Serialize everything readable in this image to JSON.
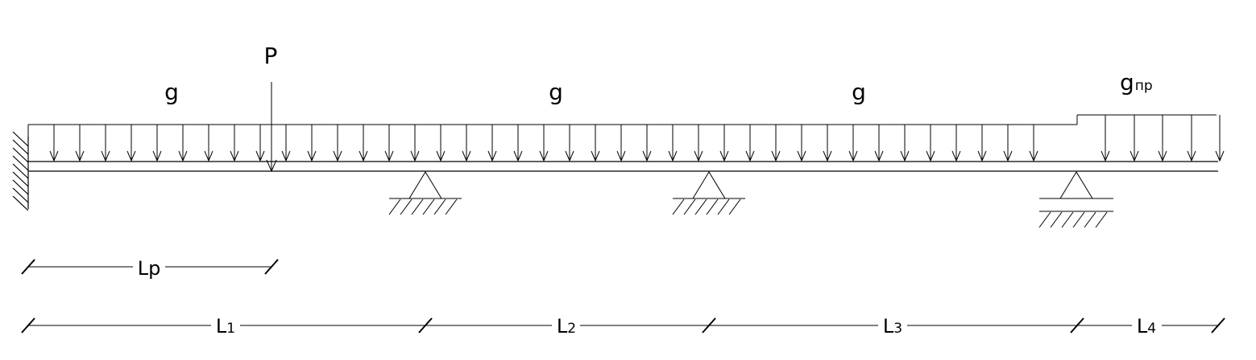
{
  "loads": {
    "point_label": "P",
    "dist_label_1": "g",
    "dist_label_2": "g",
    "dist_label_3": "g",
    "dist_label_4_main": "g",
    "dist_label_4_sub": "пр"
  },
  "dimensions": {
    "lp": {
      "main": "L",
      "sub": "p"
    },
    "l1": {
      "main": "L",
      "sub": "1"
    },
    "l2": {
      "main": "L",
      "sub": "2"
    },
    "l3": {
      "main": "L",
      "sub": "3"
    },
    "l4": {
      "main": "L",
      "sub": "4"
    }
  },
  "colors": {
    "line": "#000000",
    "background": "#ffffff"
  }
}
